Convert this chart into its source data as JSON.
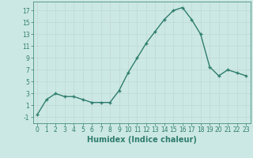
{
  "x": [
    0,
    1,
    2,
    3,
    4,
    5,
    6,
    7,
    8,
    9,
    10,
    11,
    12,
    13,
    14,
    15,
    16,
    17,
    18,
    19,
    20,
    21,
    22,
    23
  ],
  "y": [
    -0.5,
    2.0,
    3.0,
    2.5,
    2.5,
    2.0,
    1.5,
    1.5,
    1.5,
    3.5,
    6.5,
    9.0,
    11.5,
    13.5,
    15.5,
    17.0,
    17.5,
    15.5,
    13.0,
    7.5,
    6.0,
    7.0,
    6.5,
    6.0
  ],
  "line_color": "#2e7d6e",
  "marker": "+",
  "marker_color": "#2e7d6e",
  "marker_size": 3,
  "xlabel": "Humidex (Indice chaleur)",
  "xlim": [
    -0.5,
    23.5
  ],
  "ylim": [
    -2,
    18.5
  ],
  "yticks": [
    -1,
    1,
    3,
    5,
    7,
    9,
    11,
    13,
    15,
    17
  ],
  "xticks": [
    0,
    1,
    2,
    3,
    4,
    5,
    6,
    7,
    8,
    9,
    10,
    11,
    12,
    13,
    14,
    15,
    16,
    17,
    18,
    19,
    20,
    21,
    22,
    23
  ],
  "background_color": "#cce8e4",
  "grid_color": "#b0d0cc",
  "line_width": 1.0,
  "xlabel_fontsize": 7,
  "tick_fontsize": 5.5
}
